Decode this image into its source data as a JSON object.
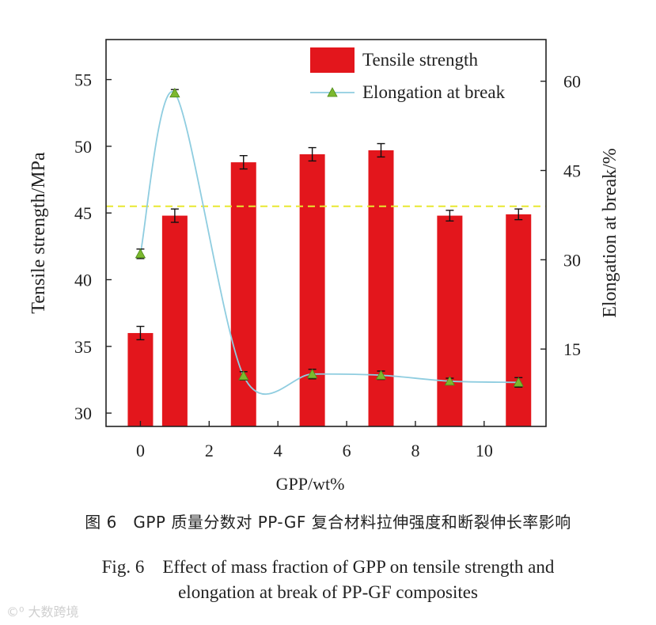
{
  "chart_data": {
    "type": "bar+line",
    "x": [
      0,
      1,
      3,
      5,
      7,
      9,
      11
    ],
    "xlabel": "GPP/wt%",
    "xticks": [
      0,
      2,
      4,
      6,
      8,
      10
    ],
    "xlim": [
      -1,
      11.8
    ],
    "series": [
      {
        "name": "Tensile strength",
        "type": "bar",
        "axis": "left",
        "color": "#e3161c",
        "values": [
          36.0,
          44.8,
          48.8,
          49.4,
          49.7,
          44.8,
          44.9
        ],
        "errors": [
          0.5,
          0.5,
          0.5,
          0.5,
          0.5,
          0.4,
          0.4
        ]
      },
      {
        "name": "Elongation at break",
        "type": "line",
        "axis": "right",
        "color": "#8fcde0",
        "marker_color": "#7cb82f",
        "values": [
          31.0,
          58.0,
          10.5,
          10.8,
          10.6,
          9.6,
          9.4
        ],
        "errors": [
          0.8,
          0.6,
          0.7,
          0.8,
          0.7,
          0.5,
          0.8
        ]
      }
    ],
    "y_left": {
      "label": "Tensile strength/MPa",
      "ticks": [
        30,
        35,
        40,
        45,
        50,
        55
      ],
      "lim": [
        29,
        58
      ]
    },
    "y_right": {
      "label": "Elongation at break/%",
      "ticks": [
        15,
        30,
        45,
        60
      ],
      "lim": [
        2,
        67
      ]
    },
    "reference_line": {
      "axis": "left",
      "value": 45.5,
      "style": "dashed",
      "color": "#e8e830"
    },
    "legend": {
      "position": "top-right",
      "entries": [
        "Tensile strength",
        "Elongation at break"
      ]
    },
    "grid": false
  },
  "caption": {
    "cn": "图 6　GPP 质量分数对 PP-GF 复合材料拉伸强度和断裂伸长率影响",
    "en_line1": "Fig. 6　Effect of mass fraction of GPP on tensile strength and",
    "en_line2": "elongation at break of PP-GF composites"
  },
  "watermark": "大数跨境"
}
